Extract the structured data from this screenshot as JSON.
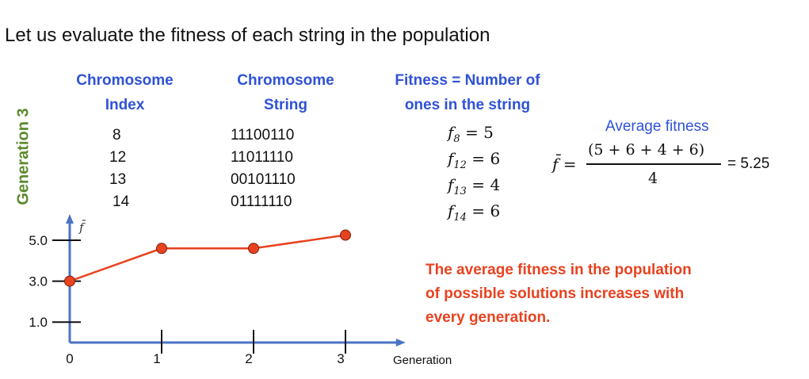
{
  "heading": "Let us evaluate the fitness of each string in the population",
  "generation_label": "Generation 3",
  "columns": {
    "index_header_1": "Chromosome",
    "index_header_2": "Index",
    "string_header_1": "Chromosome",
    "string_header_2": "String",
    "fitness_header_1": "Fitness = Number of",
    "fitness_header_2": "ones in the string"
  },
  "rows": [
    {
      "index": "8",
      "string": "11100110",
      "fitness_sub": "8",
      "fitness_val": "5"
    },
    {
      "index": "12",
      "string": "11011110",
      "fitness_sub": "12",
      "fitness_val": "6"
    },
    {
      "index": "13",
      "string": "00101110",
      "fitness_sub": "13",
      "fitness_val": "4"
    },
    {
      "index": "14",
      "string": "01111110",
      "fitness_sub": "14",
      "fitness_val": "6"
    }
  ],
  "average": {
    "label": "Average fitness",
    "numerator": "(5 + 6 + 4 + 6)",
    "denominator": "4",
    "result": "= 5.25"
  },
  "conclusion": [
    "The average fitness in the population",
    "of possible solutions increases with",
    "every generation."
  ],
  "colors": {
    "accent_blue": "#2f52d6",
    "axis_blue": "#4a73c4",
    "line_red": "#e8421f",
    "generation_green": "#5c8a2e"
  },
  "chart_data": {
    "type": "line",
    "xlabel": "Generation",
    "ylabel": "f̄",
    "x": [
      0,
      1,
      2,
      3
    ],
    "x_tick_labels": [
      "0",
      "1",
      "2",
      "3"
    ],
    "y_tick_labels": [
      "5.0",
      "3.0",
      "1.0"
    ],
    "y_ticks": [
      5.0,
      3.0,
      1.0
    ],
    "series": [
      {
        "values": [
          3.0,
          4.6,
          4.6,
          5.25
        ]
      }
    ],
    "ylim": [
      0,
      6.2
    ],
    "xlim": [
      0,
      3.55
    ]
  }
}
